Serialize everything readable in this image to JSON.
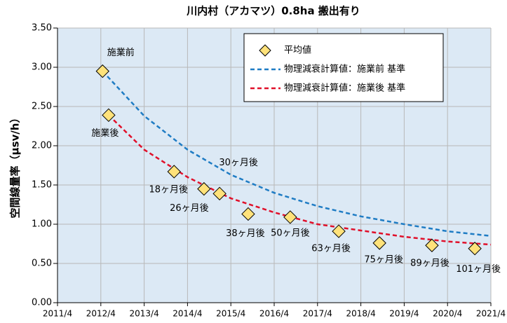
{
  "chart_data": {
    "type": "line",
    "title": "川内村（アカマツ）0.8ha 搬出有り",
    "y_label": "空間線量率（μsv/h）",
    "xlim": [
      2011.25,
      2021.25
    ],
    "xticks": [
      {
        "value": 2011.25,
        "label": "2011/4"
      },
      {
        "value": 2012.25,
        "label": "2012/4"
      },
      {
        "value": 2013.25,
        "label": "2013/4"
      },
      {
        "value": 2014.25,
        "label": "2014/4"
      },
      {
        "value": 2015.25,
        "label": "2015/4"
      },
      {
        "value": 2016.25,
        "label": "2016/4"
      },
      {
        "value": 2017.25,
        "label": "2017/4"
      },
      {
        "value": 2018.25,
        "label": "2018/4"
      },
      {
        "value": 2019.25,
        "label": "2019/4"
      },
      {
        "value": 2020.25,
        "label": "2020/4"
      },
      {
        "value": 2021.25,
        "label": "2021/4"
      }
    ],
    "ylim": [
      0,
      3.5
    ],
    "yticks": [
      {
        "value": 0,
        "label": "0.00"
      },
      {
        "value": 0.5,
        "label": "0.50"
      },
      {
        "value": 1,
        "label": "1.00"
      },
      {
        "value": 1.5,
        "label": "1.50"
      },
      {
        "value": 2,
        "label": "2.00"
      },
      {
        "value": 2.5,
        "label": "2.50"
      },
      {
        "value": 3,
        "label": "3.00"
      },
      {
        "value": 3.5,
        "label": "3.50"
      }
    ],
    "grid": true,
    "legend": "upper right",
    "series": [
      {
        "name": "平均値",
        "style": "marker",
        "color": "#ffe27a",
        "x": [
          2012.29,
          2012.43,
          2013.94,
          2014.63,
          2014.99,
          2015.65,
          2016.62,
          2017.74,
          2018.68,
          2019.89,
          2020.88
        ],
        "values": [
          2.95,
          2.39,
          1.67,
          1.45,
          1.39,
          1.13,
          1.09,
          0.91,
          0.76,
          0.73,
          0.69
        ],
        "point_labels": [
          "施業前",
          "施業後",
          "18ヶ月後",
          "26ヶ月後",
          "30ヶ月後",
          "38ヶ月後",
          "50ヶ月後",
          "63ヶ月後",
          "75ヶ月後",
          "89ヶ月後",
          "101ヶ月後"
        ]
      },
      {
        "name": "物理減衰計算値：施業前 基準",
        "style": "dashed",
        "color": "#1f7cc4",
        "x": [
          2012.29,
          2013.25,
          2014.25,
          2015.25,
          2016.25,
          2017.25,
          2018.25,
          2019.25,
          2020.25,
          2021.25
        ],
        "values": [
          2.95,
          2.38,
          1.95,
          1.63,
          1.4,
          1.23,
          1.1,
          1.0,
          0.91,
          0.85
        ]
      },
      {
        "name": "物理減衰計算値：施業後 基準",
        "style": "dashed",
        "color": "#e0102a",
        "x": [
          2012.43,
          2013.25,
          2014.25,
          2015.25,
          2016.25,
          2017.25,
          2018.25,
          2019.25,
          2020.25,
          2021.25
        ],
        "values": [
          2.39,
          1.95,
          1.6,
          1.33,
          1.15,
          1.0,
          0.92,
          0.84,
          0.78,
          0.74
        ]
      }
    ]
  }
}
